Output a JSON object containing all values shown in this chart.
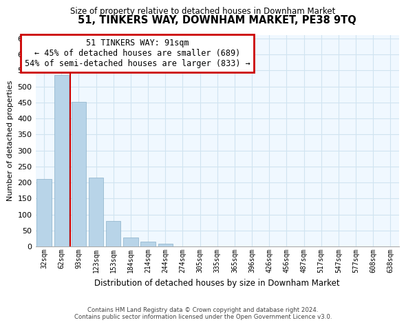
{
  "title": "51, TINKERS WAY, DOWNHAM MARKET, PE38 9TQ",
  "subtitle": "Size of property relative to detached houses in Downham Market",
  "xlabel": "Distribution of detached houses by size in Downham Market",
  "ylabel": "Number of detached properties",
  "bar_labels": [
    "32sqm",
    "62sqm",
    "93sqm",
    "123sqm",
    "153sqm",
    "184sqm",
    "214sqm",
    "244sqm",
    "274sqm",
    "305sqm",
    "335sqm",
    "365sqm",
    "396sqm",
    "426sqm",
    "456sqm",
    "487sqm",
    "517sqm",
    "547sqm",
    "577sqm",
    "608sqm",
    "638sqm"
  ],
  "bar_values": [
    210,
    535,
    452,
    215,
    79,
    29,
    15,
    8,
    0,
    0,
    0,
    1,
    0,
    0,
    0,
    0,
    0,
    1,
    0,
    0,
    1
  ],
  "bar_color": "#b8d4e8",
  "highlight_line_color": "#cc0000",
  "ylim": [
    0,
    660
  ],
  "yticks": [
    0,
    50,
    100,
    150,
    200,
    250,
    300,
    350,
    400,
    450,
    500,
    550,
    600,
    650
  ],
  "annotation_title": "51 TINKERS WAY: 91sqm",
  "annotation_line1": "← 45% of detached houses are smaller (689)",
  "annotation_line2": "54% of semi-detached houses are larger (833) →",
  "annotation_box_color": "#ffffff",
  "annotation_box_edge_color": "#cc0000",
  "footer_line1": "Contains HM Land Registry data © Crown copyright and database right 2024.",
  "footer_line2": "Contains public sector information licensed under the Open Government Licence v3.0.",
  "grid_color": "#d0e4f0",
  "bg_color": "#f0f8ff"
}
